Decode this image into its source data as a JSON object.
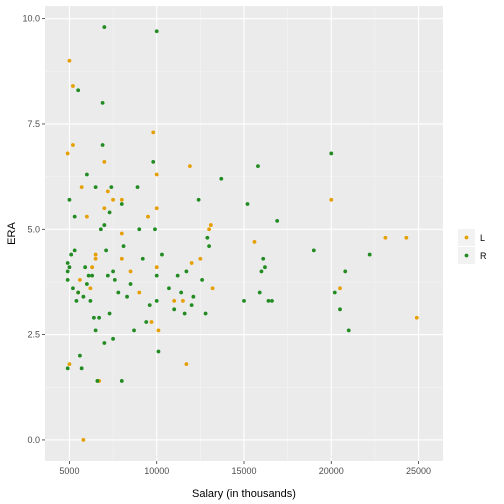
{
  "chart_data": {
    "type": "scatter",
    "title": "",
    "xlabel": "Salary (in thousands)",
    "ylabel": "ERA",
    "xlim": [
      3600,
      26400
    ],
    "ylim": [
      -0.5,
      10.3
    ],
    "x_ticks": [
      5000,
      10000,
      15000,
      20000,
      25000
    ],
    "x_tick_labels": [
      "5000",
      "10000",
      "15000",
      "20000",
      "25000"
    ],
    "y_ticks": [
      0,
      2.5,
      5,
      7.5,
      10
    ],
    "y_tick_labels": [
      "0.0",
      "2.5",
      "5.0",
      "7.5",
      "10.0"
    ],
    "grid": true,
    "legend_position": "right",
    "series": [
      {
        "name": "L",
        "color": "#E69F00",
        "points": [
          [
            5000,
            9.0
          ],
          [
            5200,
            8.4
          ],
          [
            5200,
            7.0
          ],
          [
            4900,
            6.8
          ],
          [
            5000,
            1.8
          ],
          [
            5500,
            3.5
          ],
          [
            5600,
            3.8
          ],
          [
            5700,
            6.0
          ],
          [
            5800,
            0.0
          ],
          [
            6000,
            5.3
          ],
          [
            6200,
            3.6
          ],
          [
            6300,
            4.1
          ],
          [
            6500,
            4.3
          ],
          [
            6500,
            4.4
          ],
          [
            6700,
            1.4
          ],
          [
            7000,
            6.6
          ],
          [
            7000,
            5.5
          ],
          [
            7200,
            5.9
          ],
          [
            7500,
            5.7
          ],
          [
            8000,
            5.7
          ],
          [
            8000,
            4.9
          ],
          [
            8000,
            4.3
          ],
          [
            8500,
            4.0
          ],
          [
            9000,
            3.5
          ],
          [
            9500,
            5.3
          ],
          [
            9700,
            2.8
          ],
          [
            9800,
            7.3
          ],
          [
            10000,
            6.3
          ],
          [
            10000,
            5.5
          ],
          [
            10000,
            4.1
          ],
          [
            10100,
            2.6
          ],
          [
            11000,
            3.3
          ],
          [
            11500,
            3.3
          ],
          [
            11700,
            1.8
          ],
          [
            11900,
            6.5
          ],
          [
            12000,
            4.2
          ],
          [
            12500,
            4.3
          ],
          [
            13000,
            5.0
          ],
          [
            13100,
            5.1
          ],
          [
            13200,
            3.6
          ],
          [
            15600,
            4.7
          ],
          [
            20000,
            5.7
          ],
          [
            20500,
            3.6
          ],
          [
            23100,
            4.8
          ],
          [
            24300,
            4.8
          ],
          [
            24900,
            2.9
          ]
        ]
      },
      {
        "name": "R",
        "color": "#228B22",
        "points": [
          [
            4900,
            1.7
          ],
          [
            4900,
            3.8
          ],
          [
            4900,
            4.0
          ],
          [
            4900,
            4.2
          ],
          [
            5000,
            4.1
          ],
          [
            5000,
            5.7
          ],
          [
            5100,
            4.4
          ],
          [
            5200,
            3.6
          ],
          [
            5300,
            4.5
          ],
          [
            5300,
            5.3
          ],
          [
            5400,
            3.3
          ],
          [
            5500,
            3.5
          ],
          [
            5500,
            8.3
          ],
          [
            5600,
            2.0
          ],
          [
            5700,
            1.7
          ],
          [
            5800,
            3.4
          ],
          [
            5900,
            4.1
          ],
          [
            6000,
            6.3
          ],
          [
            6000,
            3.7
          ],
          [
            6100,
            3.9
          ],
          [
            6200,
            3.3
          ],
          [
            6300,
            3.9
          ],
          [
            6400,
            2.9
          ],
          [
            6500,
            6.0
          ],
          [
            6500,
            2.6
          ],
          [
            6600,
            1.4
          ],
          [
            6700,
            2.9
          ],
          [
            6800,
            5.0
          ],
          [
            6900,
            7.0
          ],
          [
            6900,
            8.0
          ],
          [
            7000,
            9.8
          ],
          [
            7000,
            2.3
          ],
          [
            7000,
            5.1
          ],
          [
            7100,
            4.5
          ],
          [
            7200,
            3.9
          ],
          [
            7300,
            3.0
          ],
          [
            7300,
            5.4
          ],
          [
            7400,
            6.0
          ],
          [
            7500,
            4.0
          ],
          [
            7500,
            2.4
          ],
          [
            7600,
            3.8
          ],
          [
            7800,
            3.5
          ],
          [
            8000,
            1.4
          ],
          [
            8000,
            5.6
          ],
          [
            8100,
            4.6
          ],
          [
            8300,
            3.4
          ],
          [
            8500,
            3.7
          ],
          [
            8700,
            2.6
          ],
          [
            8900,
            6.0
          ],
          [
            9000,
            5.0
          ],
          [
            9200,
            4.3
          ],
          [
            9400,
            2.8
          ],
          [
            9600,
            3.2
          ],
          [
            9800,
            6.6
          ],
          [
            9900,
            5.0
          ],
          [
            10000,
            9.7
          ],
          [
            10000,
            3.9
          ],
          [
            10000,
            3.3
          ],
          [
            10100,
            2.1
          ],
          [
            10300,
            4.4
          ],
          [
            10700,
            3.6
          ],
          [
            11000,
            3.1
          ],
          [
            11200,
            3.9
          ],
          [
            11400,
            3.5
          ],
          [
            11600,
            3.0
          ],
          [
            11700,
            4.0
          ],
          [
            12000,
            3.2
          ],
          [
            12100,
            3.4
          ],
          [
            12400,
            5.7
          ],
          [
            12600,
            3.8
          ],
          [
            12800,
            3.0
          ],
          [
            12900,
            4.8
          ],
          [
            13000,
            4.6
          ],
          [
            13700,
            6.2
          ],
          [
            15000,
            3.3
          ],
          [
            15200,
            5.6
          ],
          [
            15800,
            6.5
          ],
          [
            15900,
            3.5
          ],
          [
            16000,
            4.0
          ],
          [
            16100,
            4.3
          ],
          [
            16200,
            4.1
          ],
          [
            16400,
            3.3
          ],
          [
            16600,
            3.3
          ],
          [
            16900,
            5.2
          ],
          [
            19000,
            4.5
          ],
          [
            20000,
            6.8
          ],
          [
            20200,
            3.5
          ],
          [
            20500,
            3.1
          ],
          [
            20800,
            4.0
          ],
          [
            21000,
            2.6
          ],
          [
            22200,
            4.4
          ]
        ]
      }
    ]
  }
}
